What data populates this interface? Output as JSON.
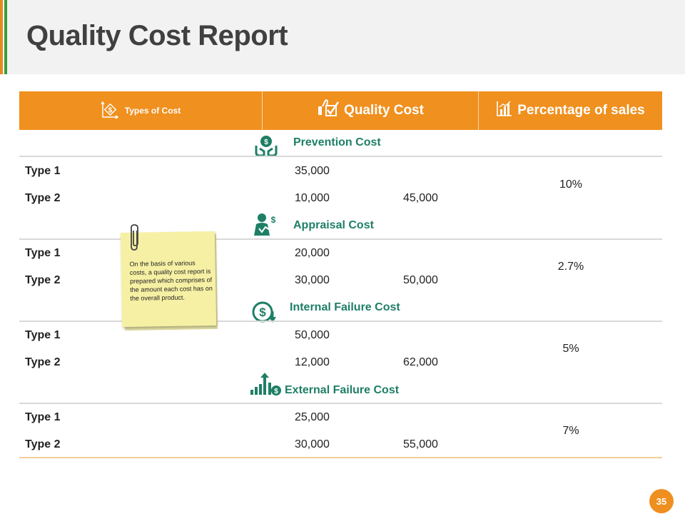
{
  "title": "Quality Cost Report",
  "colors": {
    "accent": "#f0901f",
    "section_title": "#1e7f66",
    "stripe_orange": "#e9891f",
    "stripe_green": "#3b9b3b"
  },
  "header": {
    "types_of_cost": "Types of Cost",
    "quality_cost": "Quality  Cost",
    "percentage_of_sales": "Percentage of sales",
    "icons": [
      "money-transfer-icon",
      "thumbs-up-check-icon",
      "bar-chart-icon"
    ]
  },
  "sections": [
    {
      "name": "Prevention Cost",
      "icon": "money-hands-icon",
      "rows": [
        {
          "label": "Type 1",
          "value": "35,000"
        },
        {
          "label": "Type 2",
          "value": "10,000"
        }
      ],
      "total": "45,000",
      "percentage": "10%"
    },
    {
      "name": "Appraisal Cost",
      "icon": "businessman-dollar-icon",
      "rows": [
        {
          "label": "Type 1",
          "value": "20,000"
        },
        {
          "label": "Type 2",
          "value": "30,000"
        }
      ],
      "total": "50,000",
      "percentage": "2.7%"
    },
    {
      "name": "Internal Failure Cost",
      "icon": "dollar-down-arrow-icon",
      "rows": [
        {
          "label": "Type 1",
          "value": "50,000"
        },
        {
          "label": "Type 2",
          "value": "12,000"
        }
      ],
      "total": "62,000",
      "percentage": "5%"
    },
    {
      "name": "External Failure Cost",
      "icon": "bar-growth-dollar-icon",
      "rows": [
        {
          "label": "Type 1",
          "value": "25,000"
        },
        {
          "label": "Type 2",
          "value": "30,000"
        }
      ],
      "total": "55,000",
      "percentage": "7%"
    }
  ],
  "note": "On the basis of various costs, a quality cost report is prepared which comprises of the amount  each cost has on the overall product.",
  "page_number": "35"
}
